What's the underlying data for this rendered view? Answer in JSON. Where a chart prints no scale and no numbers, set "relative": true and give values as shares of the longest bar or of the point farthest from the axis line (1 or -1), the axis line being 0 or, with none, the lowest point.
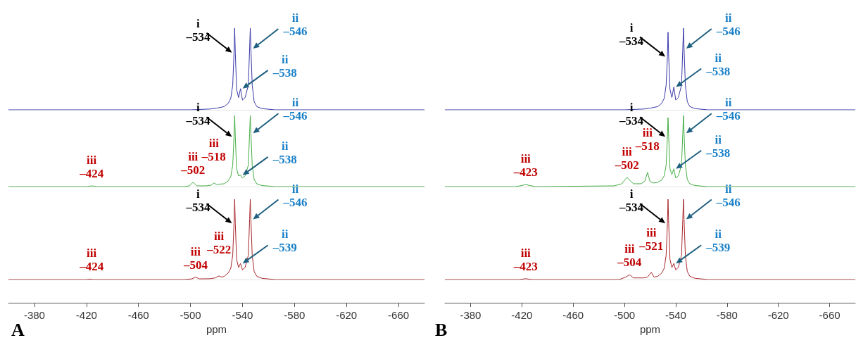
{
  "chart_data": [
    {
      "type": "line",
      "relative": true,
      "marker": "none",
      "xlim": [
        -360,
        -680
      ],
      "tick_labels": false,
      "series": [
        {
          "color": "#3838a8",
          "x": [
            -360,
            -500,
            -515,
            -520,
            -526,
            -529,
            -531,
            -532.5,
            -533.5,
            -534,
            -534.5,
            -535.5,
            -537,
            -538.5,
            -540,
            -542,
            -544.5,
            -545.5,
            -546,
            -546.5,
            -547.5,
            -549,
            -551,
            -555,
            -565,
            -680
          ],
          "values": [
            0,
            0,
            0.01,
            0.02,
            0.04,
            0.08,
            0.14,
            0.3,
            0.7,
            1,
            0.7,
            0.25,
            0.15,
            0.26,
            0.12,
            0.15,
            0.3,
            0.75,
            1,
            0.75,
            0.3,
            0.1,
            0.04,
            0.015,
            0,
            0
          ]
        }
      ],
      "annotations": [
        {
          "text": "i\n–534",
          "x": -533.5,
          "y": 0.7
        },
        {
          "text": "ii\n–546",
          "x": -546.5,
          "y": 0.75
        },
        {
          "text": "ii\n–538",
          "x": -538.5,
          "y": 0.26
        }
      ]
    },
    {
      "type": "line",
      "relative": true,
      "marker": "none",
      "xlim": [
        -360,
        -680
      ],
      "tick_labels": false,
      "series": [
        {
          "color": "#3838a8",
          "x": [
            -360,
            -500,
            -515,
            -520,
            -526,
            -529,
            -531,
            -532.5,
            -533.5,
            -534,
            -534.5,
            -535.5,
            -537,
            -538.5,
            -540,
            -542,
            -544.5,
            -545.5,
            -546,
            -546.5,
            -547.5,
            -549,
            -551,
            -555,
            -565,
            -680
          ],
          "values": [
            0,
            0,
            0.01,
            0.02,
            0.04,
            0.08,
            0.14,
            0.3,
            0.65,
            0.95,
            0.65,
            0.25,
            0.15,
            0.28,
            0.12,
            0.15,
            0.3,
            0.75,
            1,
            0.75,
            0.3,
            0.1,
            0.04,
            0.015,
            0,
            0
          ]
        }
      ],
      "annotations": [
        {
          "text": "i\n–534",
          "x": -533.5,
          "y": 0.65
        },
        {
          "text": "ii\n–546",
          "x": -546.5,
          "y": 0.75
        },
        {
          "text": "ii\n–538",
          "x": -538.5,
          "y": 0.28
        }
      ]
    },
    {
      "type": "line",
      "relative": true,
      "marker": "none",
      "xlim": [
        -360,
        -680
      ],
      "tick_labels": false,
      "series": [
        {
          "color": "#44ad44",
          "x": [
            -360,
            -420,
            -424,
            -428,
            -495,
            -499,
            -502,
            -505,
            -512,
            -516,
            -518,
            -520,
            -526,
            -529,
            -531,
            -532.5,
            -533.5,
            -534,
            -534.5,
            -535.5,
            -537,
            -538.5,
            -540,
            -542,
            -544.5,
            -545.5,
            -546,
            -546.5,
            -547.5,
            -549,
            -551,
            -555,
            -565,
            -680
          ],
          "values": [
            0,
            0,
            0.01,
            0,
            0,
            0.01,
            0.06,
            0.01,
            0.01,
            0.02,
            0.05,
            0.03,
            0.04,
            0.08,
            0.14,
            0.3,
            0.7,
            1,
            0.7,
            0.25,
            0.15,
            0.16,
            0.12,
            0.15,
            0.3,
            0.75,
            1,
            0.75,
            0.3,
            0.1,
            0.04,
            0.015,
            0,
            0
          ]
        }
      ],
      "annotations": [
        {
          "text": "i\n–534",
          "x": -533.5,
          "y": 0.7
        },
        {
          "text": "ii\n–546",
          "x": -546.5,
          "y": 0.75
        },
        {
          "text": "ii\n–538",
          "x": -538.5,
          "y": 0.16
        },
        {
          "text": "iii\n–424",
          "x": -424,
          "y": 0.01
        },
        {
          "text": "iii\n–502",
          "x": -502,
          "y": 0.06
        },
        {
          "text": "iii\n–518",
          "x": -518,
          "y": 0.05
        }
      ]
    },
    {
      "type": "line",
      "relative": true,
      "marker": "none",
      "xlim": [
        -360,
        -680
      ],
      "tick_labels": false,
      "series": [
        {
          "color": "#44ad44",
          "x": [
            -360,
            -415,
            -420,
            -423,
            -426,
            -431,
            -492,
            -498,
            -500.5,
            -502,
            -503.5,
            -507,
            -513,
            -516,
            -518,
            -520,
            -523,
            -526,
            -529,
            -531,
            -532.5,
            -533.5,
            -534,
            -534.5,
            -535.5,
            -537,
            -538.5,
            -540,
            -542,
            -544.5,
            -545.5,
            -546,
            -546.5,
            -547.5,
            -549,
            -551,
            -555,
            -565,
            -680
          ],
          "values": [
            0,
            0,
            0.015,
            0.03,
            0.015,
            0,
            0.01,
            0.04,
            0.1,
            0.13,
            0.1,
            0.04,
            0.04,
            0.08,
            0.2,
            0.07,
            0.05,
            0.06,
            0.09,
            0.15,
            0.3,
            0.7,
            0.97,
            0.7,
            0.25,
            0.17,
            0.25,
            0.12,
            0.15,
            0.3,
            0.75,
            1,
            0.75,
            0.3,
            0.1,
            0.04,
            0.015,
            0,
            0
          ]
        }
      ],
      "annotations": [
        {
          "text": "i\n–534",
          "x": -533.5,
          "y": 0.7
        },
        {
          "text": "ii\n–546",
          "x": -546.5,
          "y": 0.75
        },
        {
          "text": "ii\n–538",
          "x": -538.5,
          "y": 0.25
        },
        {
          "text": "iii\n–423",
          "x": -423,
          "y": 0.03
        },
        {
          "text": "iii\n–502",
          "x": -502,
          "y": 0.13
        },
        {
          "text": "iii\n–518",
          "x": -518,
          "y": 0.2
        }
      ]
    },
    {
      "type": "line",
      "relative": true,
      "marker": "none",
      "xlim": [
        -360,
        -680
      ],
      "xlabel": "ppm",
      "tick_labels": "x",
      "xticks": [
        -380,
        -420,
        -460,
        -500,
        -540,
        -580,
        -620,
        -660
      ],
      "series": [
        {
          "color": "#a8282e",
          "x": [
            -360,
            -420,
            -422.5,
            -425,
            -495,
            -501,
            -504,
            -507,
            -515,
            -519,
            -522,
            -524,
            -526,
            -529,
            -531,
            -532.5,
            -533.5,
            -534,
            -534.5,
            -535.5,
            -537,
            -538.5,
            -540,
            -542,
            -544.5,
            -545.5,
            -546,
            -546.5,
            -547.5,
            -549,
            -551,
            -555,
            -565,
            -680
          ],
          "values": [
            0,
            0,
            0.006,
            0,
            0,
            0.008,
            0.03,
            0.008,
            0.01,
            0.02,
            0.045,
            0.03,
            0.04,
            0.08,
            0.14,
            0.3,
            0.7,
            1,
            0.7,
            0.25,
            0.15,
            0.2,
            0.12,
            0.15,
            0.3,
            0.75,
            1,
            0.75,
            0.3,
            0.1,
            0.04,
            0.015,
            0,
            0
          ]
        }
      ],
      "annotations": [
        {
          "text": "i\n–534",
          "x": -533.5,
          "y": 0.7
        },
        {
          "text": "ii\n–546",
          "x": -546.5,
          "y": 0.75
        },
        {
          "text": "ii\n–539",
          "x": -538.5,
          "y": 0.2
        },
        {
          "text": "iii\n–424",
          "x": -424,
          "y": 0.006
        },
        {
          "text": "iii\n–504",
          "x": -504,
          "y": 0.03
        },
        {
          "text": "iii\n–522",
          "x": -522,
          "y": 0.045
        },
        "A"
      ]
    },
    {
      "type": "line",
      "relative": true,
      "marker": "none",
      "xlim": [
        -360,
        -680
      ],
      "xlabel": "ppm",
      "tick_labels": "x",
      "xticks": [
        -380,
        -420,
        -460,
        -500,
        -540,
        -580,
        -620,
        -660
      ],
      "series": [
        {
          "color": "#a8282e",
          "x": [
            -360,
            -418,
            -423,
            -428,
            -496,
            -501,
            -504,
            -507,
            -515,
            -518,
            -521,
            -523,
            -526,
            -529,
            -531,
            -532.5,
            -533.5,
            -534,
            -534.5,
            -535.5,
            -537,
            -538.5,
            -540,
            -542,
            -544.5,
            -545.5,
            -546,
            -546.5,
            -547.5,
            -549,
            -551,
            -555,
            -565,
            -680
          ],
          "values": [
            0,
            0,
            0.01,
            0,
            0,
            0.03,
            0.06,
            0.02,
            0.02,
            0.03,
            0.09,
            0.03,
            0.04,
            0.08,
            0.14,
            0.3,
            0.7,
            1,
            0.7,
            0.25,
            0.15,
            0.2,
            0.12,
            0.15,
            0.3,
            0.75,
            1,
            0.75,
            0.3,
            0.1,
            0.04,
            0.015,
            0,
            0
          ]
        }
      ],
      "annotations": [
        {
          "text": "i\n–534",
          "x": -533.5,
          "y": 0.7
        },
        {
          "text": "ii\n–546",
          "x": -546.5,
          "y": 0.75
        },
        {
          "text": "ii\n–539",
          "x": -538.5,
          "y": 0.2
        },
        {
          "text": "iii\n–423",
          "x": -423,
          "y": 0.01
        },
        {
          "text": "iii\n–504",
          "x": -504,
          "y": 0.06
        },
        {
          "text": "iii\n–521",
          "x": -521,
          "y": 0.09
        },
        "B"
      ]
    }
  ]
}
